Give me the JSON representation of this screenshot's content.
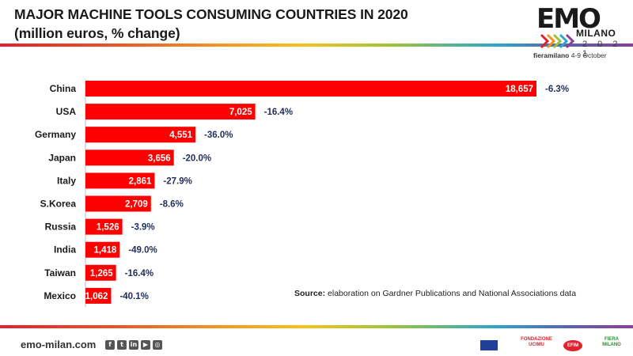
{
  "header": {
    "title_line1": "MAJOR MACHINE TOOLS CONSUMING COUNTRIES IN 2020",
    "title_line2": "(million euros, % change)"
  },
  "logo": {
    "wordmark": "EMO",
    "city": "MILANO",
    "year": "2 0 2 1",
    "venue_name": "fieramilano",
    "dates": "4-9 October"
  },
  "chart_data": {
    "type": "bar",
    "orientation": "horizontal",
    "title": "MAJOR MACHINE TOOLS CONSUMING COUNTRIES IN 2020",
    "subtitle": "(million euros, % change)",
    "categories": [
      "China",
      "USA",
      "Germany",
      "Japan",
      "Italy",
      "S.Korea",
      "Russia",
      "India",
      "Taiwan",
      "Mexico"
    ],
    "values": [
      18657,
      7025,
      4551,
      3656,
      2861,
      2709,
      1526,
      1418,
      1265,
      1062
    ],
    "value_labels": [
      "18,657",
      "7,025",
      "4,551",
      "3,656",
      "2,861",
      "2,709",
      "1,526",
      "1,418",
      "1,265",
      "1,062"
    ],
    "changes": [
      "-6.3%",
      "-16.4%",
      "-36.0%",
      "-20.0%",
      "-27.9%",
      "-8.6%",
      "-3.9%",
      "-49.0%",
      "-16.4%",
      "-40.1%"
    ],
    "bar_color": "#ff0000",
    "change_color": "#1f2d5c",
    "xlim": [
      0,
      18657
    ]
  },
  "source": {
    "label": "Source:",
    "text": "elaboration on Gardner Publications and National Associations data"
  },
  "footer": {
    "site": "emo-milan.com",
    "socials": [
      "f",
      "t",
      "in",
      "▶",
      "◎"
    ],
    "partners": [
      "FONDAZIONE UCIMU",
      "EFIM",
      "FIERA MILANO"
    ]
  }
}
